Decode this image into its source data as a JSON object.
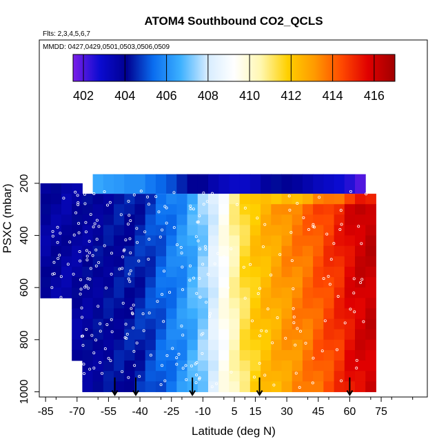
{
  "chart_data": {
    "type": "heatmap",
    "title": "ATOM4 Southbound CO2_QCLS",
    "flights_label": "Flts: 2,3,4,5,6,7",
    "dates_label": "MMDD: 0427,0429,0501,0503,0506,0509",
    "xlabel": "Latitude (deg N)",
    "ylabel": "PSXC (mbar)",
    "x_ticks": [
      -85,
      -70,
      -55,
      -40,
      -25,
      -10,
      5,
      15,
      30,
      45,
      60,
      75
    ],
    "x_tick_labels": [
      "-85",
      "-70",
      "-55",
      "-40",
      "-25",
      "-10",
      "5",
      "15",
      "30",
      "45",
      "60",
      "75"
    ],
    "y_ticks": [
      200,
      400,
      600,
      800,
      1000
    ],
    "y_tick_labels": [
      "200",
      "400",
      "600",
      "800",
      "1000"
    ],
    "xlim": [
      -88,
      97
    ],
    "ylim": [
      1020,
      -350
    ],
    "colorbar": {
      "range": [
        401.5,
        417
      ],
      "ticks": [
        402,
        404,
        406,
        408,
        410,
        412,
        414,
        416
      ],
      "tick_labels": [
        "402",
        "404",
        "406",
        "408",
        "410",
        "412",
        "414",
        "416"
      ],
      "colors": [
        "#7b1fe8",
        "#0b0bd0",
        "#000090",
        "#0a6ef0",
        "#3cb0ff",
        "#d6ecff",
        "#ffffff",
        "#fff7b0",
        "#ffd000",
        "#ff9a00",
        "#ff4a00",
        "#e00000",
        "#a00000"
      ]
    },
    "latitude_bands": [
      -85,
      -80,
      -75,
      -70,
      -65,
      -60,
      -55,
      -50,
      -45,
      -40,
      -35,
      -30,
      -25,
      -20,
      -15,
      -10,
      -5,
      0,
      5,
      10,
      15,
      20,
      25,
      30,
      35,
      40,
      45,
      50,
      55,
      60,
      65,
      70
    ],
    "co2_profile_by_band": [
      403.8,
      403.8,
      403.7,
      403.8,
      403.9,
      404.0,
      404.1,
      404.2,
      404.3,
      404.5,
      404.8,
      405.2,
      405.6,
      406.0,
      406.6,
      407.3,
      408.2,
      409.4,
      410.5,
      411.4,
      412.0,
      412.4,
      412.8,
      413.2,
      413.5,
      413.8,
      414.2,
      414.6,
      415.0,
      415.6,
      416.0,
      416.2
    ],
    "upper_troposphere_200mbar": [
      null,
      null,
      null,
      null,
      null,
      406.5,
      406.3,
      406.2,
      406.0,
      406.0,
      405.6,
      405.3,
      405.0,
      404.5,
      404.0,
      404.0,
      403.5,
      403.2,
      403.0,
      403.0,
      403.3,
      403.8,
      404.2,
      404.0,
      403.8,
      403.5,
      403.2,
      403.0,
      402.8,
      402.5,
      402.0,
      null
    ],
    "arrow_latitudes": [
      -52,
      -42,
      -15,
      17,
      60
    ]
  }
}
